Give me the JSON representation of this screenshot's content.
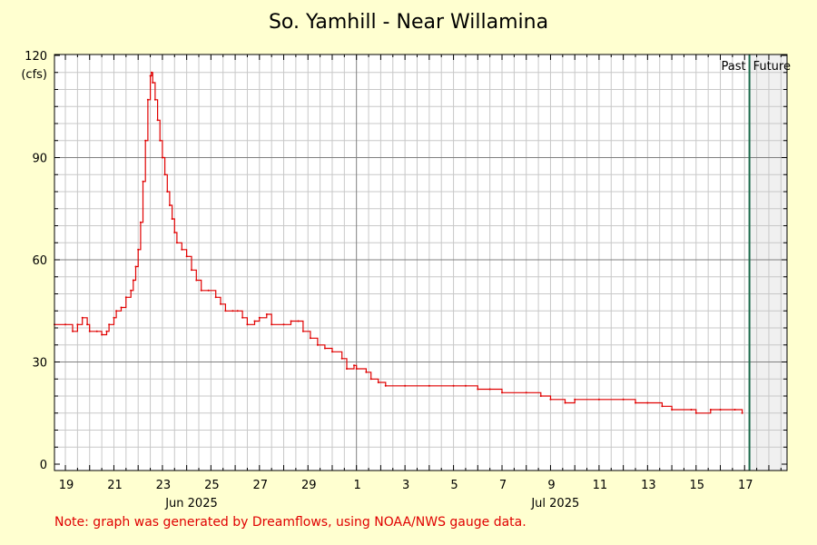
{
  "title": "So. Yamhill - Near Willamina",
  "note": "Note: graph was generated by Dreamflows, using NOAA/NWS gauge data.",
  "colors": {
    "background": "#ffffd0",
    "plot_background": "#ffffff",
    "future_shade": "#f0f0f0",
    "line": "#e00000",
    "now_line": "#1a6b4a",
    "grid": "#c8c8c8",
    "major_grid": "#808080",
    "unit_text": "#e00000"
  },
  "chart_data": {
    "type": "line",
    "title": "So. Yamhill - Near Willamina",
    "ylabel": "(cfs)",
    "ylim": [
      0,
      120
    ],
    "y_ticks": [
      0,
      30,
      60,
      90,
      120
    ],
    "y_major_gridlines": [
      30,
      60,
      90
    ],
    "y_minor_step": 5,
    "x_unit": "day of 2025 (June day number; July days as 30 + day)",
    "xlim": [
      18.55,
      48.75
    ],
    "x_tick_labels": [
      {
        "x": 19,
        "label": "19"
      },
      {
        "x": 21,
        "label": "21"
      },
      {
        "x": 23,
        "label": "23"
      },
      {
        "x": 25,
        "label": "25"
      },
      {
        "x": 27,
        "label": "27"
      },
      {
        "x": 29,
        "label": "29"
      },
      {
        "x": 31,
        "label": "1"
      },
      {
        "x": 33,
        "label": "3"
      },
      {
        "x": 35,
        "label": "5"
      },
      {
        "x": 37,
        "label": "7"
      },
      {
        "x": 39,
        "label": "9"
      },
      {
        "x": 41,
        "label": "11"
      },
      {
        "x": 43,
        "label": "13"
      },
      {
        "x": 45,
        "label": "15"
      },
      {
        "x": 47,
        "label": "17"
      }
    ],
    "month_labels": [
      {
        "x": 24.2,
        "label": "Jun 2025"
      },
      {
        "x": 39.2,
        "label": "Jul 2025"
      }
    ],
    "month_boundary": 31,
    "now_x": 47.2,
    "past_label": "Past",
    "future_label": "Future",
    "grid": true,
    "series": [
      {
        "values": [
          [
            18.55,
            41
          ],
          [
            19.0,
            41
          ],
          [
            19.3,
            39
          ],
          [
            19.5,
            41
          ],
          [
            19.7,
            43
          ],
          [
            19.9,
            41
          ],
          [
            20.0,
            39
          ],
          [
            20.3,
            39
          ],
          [
            20.5,
            38
          ],
          [
            20.7,
            39
          ],
          [
            20.8,
            41
          ],
          [
            21.0,
            43
          ],
          [
            21.1,
            45
          ],
          [
            21.3,
            46
          ],
          [
            21.5,
            49
          ],
          [
            21.7,
            51
          ],
          [
            21.8,
            54
          ],
          [
            21.9,
            58
          ],
          [
            22.0,
            63
          ],
          [
            22.1,
            71
          ],
          [
            22.2,
            83
          ],
          [
            22.3,
            95
          ],
          [
            22.4,
            107
          ],
          [
            22.5,
            114
          ],
          [
            22.55,
            115
          ],
          [
            22.6,
            112
          ],
          [
            22.7,
            107
          ],
          [
            22.8,
            101
          ],
          [
            22.9,
            95
          ],
          [
            23.0,
            90
          ],
          [
            23.1,
            85
          ],
          [
            23.2,
            80
          ],
          [
            23.3,
            76
          ],
          [
            23.4,
            72
          ],
          [
            23.5,
            68
          ],
          [
            23.6,
            65
          ],
          [
            23.8,
            63
          ],
          [
            24.0,
            61
          ],
          [
            24.2,
            57
          ],
          [
            24.4,
            54
          ],
          [
            24.6,
            51
          ],
          [
            24.9,
            51
          ],
          [
            25.2,
            49
          ],
          [
            25.4,
            47
          ],
          [
            25.6,
            45
          ],
          [
            25.9,
            45
          ],
          [
            26.1,
            45
          ],
          [
            26.3,
            43
          ],
          [
            26.5,
            41
          ],
          [
            26.8,
            42
          ],
          [
            27.0,
            43
          ],
          [
            27.3,
            44
          ],
          [
            27.5,
            41
          ],
          [
            28.0,
            41
          ],
          [
            28.3,
            42
          ],
          [
            28.6,
            42
          ],
          [
            28.8,
            39
          ],
          [
            29.1,
            37
          ],
          [
            29.4,
            35
          ],
          [
            29.7,
            34
          ],
          [
            30.0,
            33
          ],
          [
            30.4,
            31
          ],
          [
            30.6,
            28
          ],
          [
            30.9,
            29
          ],
          [
            31.0,
            28
          ],
          [
            31.4,
            27
          ],
          [
            31.6,
            25
          ],
          [
            31.9,
            24
          ],
          [
            32.2,
            23
          ],
          [
            33.0,
            23
          ],
          [
            34.0,
            23
          ],
          [
            35.0,
            23
          ],
          [
            35.5,
            23
          ],
          [
            36.0,
            22
          ],
          [
            36.5,
            22
          ],
          [
            37.0,
            21
          ],
          [
            38.0,
            21
          ],
          [
            38.6,
            20
          ],
          [
            39.0,
            19
          ],
          [
            39.6,
            18
          ],
          [
            40.0,
            19
          ],
          [
            41.0,
            19
          ],
          [
            42.0,
            19
          ],
          [
            42.5,
            18
          ],
          [
            43.0,
            18
          ],
          [
            43.6,
            17
          ],
          [
            44.0,
            16
          ],
          [
            44.8,
            16
          ],
          [
            45.0,
            15
          ],
          [
            45.6,
            16
          ],
          [
            46.0,
            16
          ],
          [
            46.6,
            16
          ],
          [
            46.9,
            15
          ]
        ]
      }
    ]
  }
}
